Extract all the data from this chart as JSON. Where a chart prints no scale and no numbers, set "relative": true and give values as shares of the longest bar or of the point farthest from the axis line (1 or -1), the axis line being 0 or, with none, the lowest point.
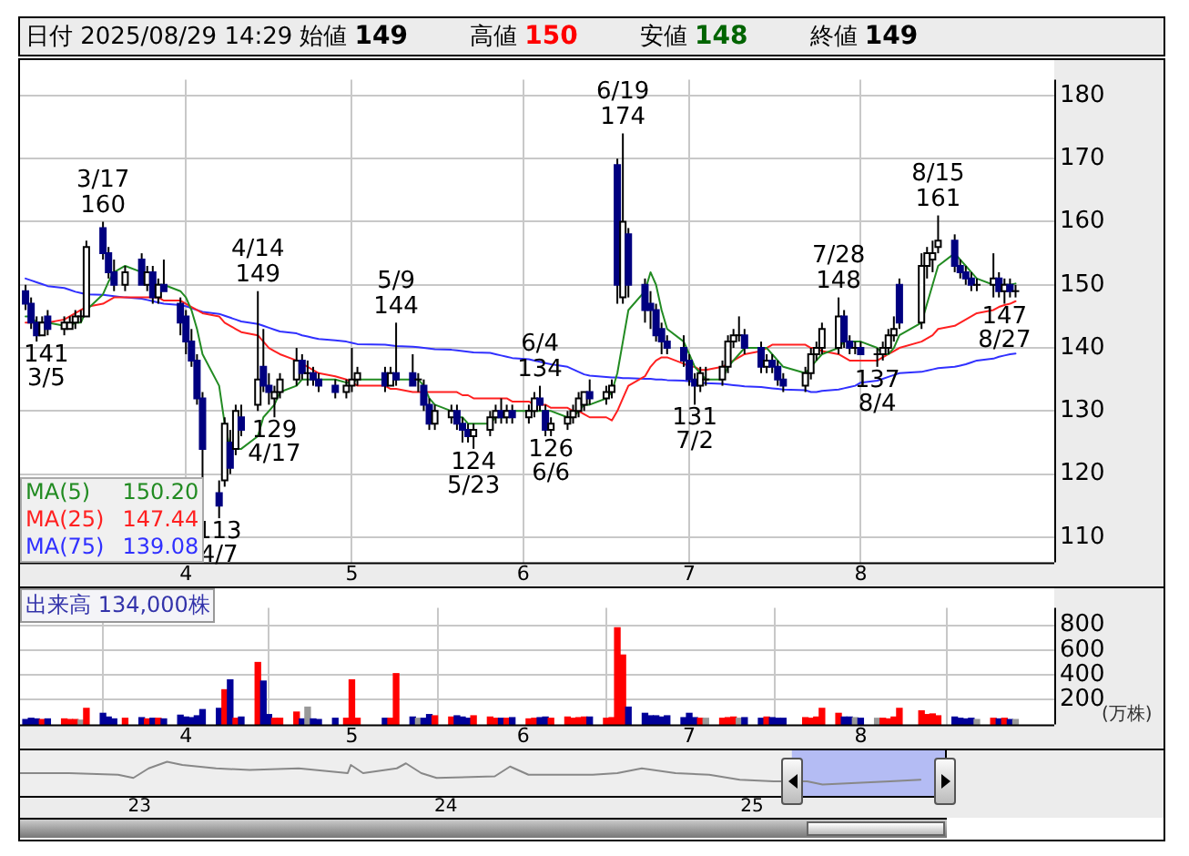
{
  "chart_data": [
    {
      "type": "candlestick",
      "title": "日付 2025/08/29 14:29",
      "annotations": [
        "始値 149",
        "高値 150",
        "安値 148",
        "終値 149",
        {
          "text": "141\n3/5",
          "x": "2025-03-05",
          "y": 141
        },
        {
          "text": "3/17\n160",
          "x": "2025-03-17",
          "y": 160
        },
        {
          "text": "113\n4/7",
          "x": "2025-04-07",
          "y": 113
        },
        {
          "text": "4/14\n149",
          "x": "2025-04-14",
          "y": 149
        },
        {
          "text": "129\n4/17",
          "x": "2025-04-17",
          "y": 129
        },
        {
          "text": "5/9\n144",
          "x": "2025-05-09",
          "y": 144
        },
        {
          "text": "124\n5/23",
          "x": "2025-05-23",
          "y": 124
        },
        {
          "text": "6/4\n134",
          "x": "2025-06-04",
          "y": 134
        },
        {
          "text": "126\n6/6",
          "x": "2025-06-06",
          "y": 126
        },
        {
          "text": "6/19\n174",
          "x": "2025-06-19",
          "y": 174
        },
        {
          "text": "131\n7/2",
          "x": "2025-07-02",
          "y": 131
        },
        {
          "text": "7/28\n148",
          "x": "2025-07-28",
          "y": 148
        },
        {
          "text": "137\n8/4",
          "x": "2025-08-04",
          "y": 137
        },
        {
          "text": "8/15\n161",
          "x": "2025-08-15",
          "y": 161
        },
        {
          "text": "147\n8/27",
          "x": "2025-08-27",
          "y": 147
        }
      ],
      "x": [
        "2025-03-03",
        "2025-03-04",
        "2025-03-05",
        "2025-03-06",
        "2025-03-07",
        "2025-03-10",
        "2025-03-11",
        "2025-03-12",
        "2025-03-13",
        "2025-03-14",
        "2025-03-17",
        "2025-03-18",
        "2025-03-19",
        "2025-03-21",
        "2025-03-24",
        "2025-03-25",
        "2025-03-26",
        "2025-03-27",
        "2025-03-28",
        "2025-03-31",
        "2025-04-01",
        "2025-04-02",
        "2025-04-03",
        "2025-04-04",
        "2025-04-07",
        "2025-04-08",
        "2025-04-09",
        "2025-04-10",
        "2025-04-11",
        "2025-04-14",
        "2025-04-15",
        "2025-04-16",
        "2025-04-17",
        "2025-04-18",
        "2025-04-21",
        "2025-04-22",
        "2025-04-23",
        "2025-04-24",
        "2025-04-25",
        "2025-04-28",
        "2025-04-30",
        "2025-05-01",
        "2025-05-02",
        "2025-05-07",
        "2025-05-08",
        "2025-05-09",
        "2025-05-12",
        "2025-05-13",
        "2025-05-14",
        "2025-05-15",
        "2025-05-16",
        "2025-05-19",
        "2025-05-20",
        "2025-05-21",
        "2025-05-22",
        "2025-05-23",
        "2025-05-26",
        "2025-05-27",
        "2025-05-28",
        "2025-05-29",
        "2025-05-30",
        "2025-06-02",
        "2025-06-03",
        "2025-06-04",
        "2025-06-05",
        "2025-06-06",
        "2025-06-09",
        "2025-06-10",
        "2025-06-11",
        "2025-06-12",
        "2025-06-13",
        "2025-06-16",
        "2025-06-17",
        "2025-06-18",
        "2025-06-19",
        "2025-06-20",
        "2025-06-23",
        "2025-06-24",
        "2025-06-25",
        "2025-06-26",
        "2025-06-27",
        "2025-06-30",
        "2025-07-01",
        "2025-07-02",
        "2025-07-03",
        "2025-07-04",
        "2025-07-07",
        "2025-07-08",
        "2025-07-09",
        "2025-07-10",
        "2025-07-11",
        "2025-07-14",
        "2025-07-15",
        "2025-07-16",
        "2025-07-17",
        "2025-07-18",
        "2025-07-22",
        "2025-07-23",
        "2025-07-24",
        "2025-07-25",
        "2025-07-28",
        "2025-07-29",
        "2025-07-30",
        "2025-07-31",
        "2025-08-01",
        "2025-08-04",
        "2025-08-05",
        "2025-08-06",
        "2025-08-07",
        "2025-08-08",
        "2025-08-12",
        "2025-08-13",
        "2025-08-14",
        "2025-08-15",
        "2025-08-18",
        "2025-08-19",
        "2025-08-20",
        "2025-08-21",
        "2025-08-22",
        "2025-08-25",
        "2025-08-26",
        "2025-08-27",
        "2025-08-28",
        "2025-08-29"
      ],
      "ohlc": [
        [
          149,
          150,
          146,
          147
        ],
        [
          147,
          148,
          143,
          144
        ],
        [
          144,
          145,
          141,
          142
        ],
        [
          142,
          145,
          142,
          144
        ],
        [
          145,
          146,
          142,
          143
        ],
        [
          143,
          145,
          142,
          144
        ],
        [
          143,
          145,
          143,
          144
        ],
        [
          144,
          146,
          143,
          145
        ],
        [
          145,
          146,
          144,
          145
        ],
        [
          145,
          157,
          145,
          156
        ],
        [
          159,
          160,
          154,
          155
        ],
        [
          155,
          156,
          151,
          152
        ],
        [
          152,
          154,
          149,
          150
        ],
        [
          150,
          153,
          149,
          152
        ],
        [
          154,
          155,
          150,
          150
        ],
        [
          150,
          153,
          149,
          152
        ],
        [
          152,
          153,
          147,
          148
        ],
        [
          148,
          151,
          147,
          150
        ],
        [
          150,
          154,
          149,
          149
        ],
        [
          147,
          148,
          142,
          144
        ],
        [
          145,
          146,
          139,
          141
        ],
        [
          141,
          143,
          137,
          138
        ],
        [
          138,
          139,
          131,
          132
        ],
        [
          132,
          133,
          119,
          124
        ],
        [
          117,
          119,
          113,
          115
        ],
        [
          119,
          129,
          118,
          128
        ],
        [
          125,
          127,
          120,
          121
        ],
        [
          124,
          131,
          123,
          130
        ],
        [
          129,
          131,
          126,
          127
        ],
        [
          131,
          149,
          130,
          135
        ],
        [
          137,
          143,
          133,
          134
        ],
        [
          134,
          136,
          131,
          133
        ],
        [
          132,
          134,
          129,
          133
        ],
        [
          133,
          136,
          132,
          135
        ],
        [
          135,
          140,
          134,
          138
        ],
        [
          138,
          139,
          135,
          136
        ],
        [
          136,
          138,
          134,
          136
        ],
        [
          136,
          137,
          134,
          135
        ],
        [
          135,
          136,
          133,
          134
        ],
        [
          134,
          135,
          132,
          133
        ],
        [
          133,
          135,
          132,
          134
        ],
        [
          134,
          140,
          133,
          135
        ],
        [
          135,
          137,
          134,
          136
        ],
        [
          136,
          137,
          133,
          134
        ],
        [
          134,
          137,
          134,
          136
        ],
        [
          136,
          144,
          134,
          135
        ],
        [
          136,
          139,
          134,
          134
        ],
        [
          135,
          136,
          133,
          135
        ],
        [
          134,
          135,
          130,
          131
        ],
        [
          131,
          132,
          127,
          128
        ],
        [
          128,
          131,
          127,
          130
        ],
        [
          129,
          131,
          128,
          130
        ],
        [
          130,
          131,
          127,
          128
        ],
        [
          128,
          129,
          125,
          127
        ],
        [
          127,
          128,
          125,
          126
        ],
        [
          126,
          128,
          124,
          127
        ],
        [
          127,
          130,
          126,
          129
        ],
        [
          129,
          131,
          128,
          130
        ],
        [
          130,
          132,
          128,
          129
        ],
        [
          129,
          131,
          128,
          130
        ],
        [
          130,
          131,
          128,
          129
        ],
        [
          129,
          131,
          128,
          130
        ],
        [
          130,
          133,
          129,
          132
        ],
        [
          132,
          134,
          130,
          131
        ],
        [
          130,
          131,
          126,
          127
        ],
        [
          127,
          129,
          126,
          128
        ],
        [
          128,
          130,
          127,
          129
        ],
        [
          129,
          131,
          128,
          130
        ],
        [
          130,
          133,
          129,
          132
        ],
        [
          131,
          133,
          130,
          133
        ],
        [
          133,
          135,
          131,
          132
        ],
        [
          132,
          134,
          131,
          133
        ],
        [
          133,
          135,
          132,
          134
        ],
        [
          169,
          170,
          147,
          150
        ],
        [
          148,
          174,
          147,
          160
        ],
        [
          158,
          159,
          148,
          150
        ],
        [
          150,
          151,
          144,
          146
        ],
        [
          147,
          149,
          143,
          146
        ],
        [
          146,
          147,
          141,
          142
        ],
        [
          143,
          144,
          139,
          141
        ],
        [
          141,
          142,
          139,
          140
        ],
        [
          140,
          142,
          137,
          138
        ],
        [
          138,
          139,
          134,
          135
        ],
        [
          135,
          136,
          131,
          134
        ],
        [
          134,
          137,
          133,
          136
        ],
        [
          135,
          137,
          134,
          135
        ],
        [
          135,
          138,
          134,
          137
        ],
        [
          137,
          142,
          136,
          141
        ],
        [
          141,
          143,
          140,
          142
        ],
        [
          142,
          145,
          141,
          142
        ],
        [
          142,
          143,
          139,
          140
        ],
        [
          140,
          141,
          136,
          137
        ],
        [
          137,
          139,
          136,
          138
        ],
        [
          138,
          139,
          136,
          137
        ],
        [
          137,
          138,
          134,
          135
        ],
        [
          135,
          136,
          133,
          134
        ],
        [
          134,
          137,
          133,
          136
        ],
        [
          136,
          140,
          135,
          139
        ],
        [
          139,
          141,
          138,
          140
        ],
        [
          140,
          144,
          139,
          143
        ],
        [
          140,
          148,
          139,
          145
        ],
        [
          145,
          146,
          140,
          141
        ],
        [
          141,
          142,
          139,
          140
        ],
        [
          140,
          141,
          139,
          140
        ],
        [
          140,
          141,
          139,
          139
        ],
        [
          139,
          140,
          137,
          139
        ],
        [
          139,
          141,
          138,
          140
        ],
        [
          140,
          143,
          139,
          142
        ],
        [
          142,
          145,
          141,
          143
        ],
        [
          150,
          151,
          143,
          144
        ],
        [
          144,
          155,
          143,
          153
        ],
        [
          153,
          156,
          151,
          155
        ],
        [
          154,
          157,
          152,
          155
        ],
        [
          156,
          161,
          155,
          157
        ],
        [
          157,
          158,
          152,
          153
        ],
        [
          153,
          154,
          151,
          152
        ],
        [
          152,
          153,
          150,
          151
        ],
        [
          151,
          152,
          149,
          150
        ],
        [
          150,
          151,
          149,
          150
        ],
        [
          150,
          155,
          148,
          151
        ],
        [
          151,
          152,
          148,
          149
        ],
        [
          149,
          151,
          147,
          150
        ],
        [
          150,
          151,
          148,
          149
        ],
        [
          149,
          150,
          148,
          149
        ]
      ],
      "colors": [
        "#000080",
        "#000080",
        "#000080",
        "#ffffff",
        "#000080",
        "#ffffff",
        "#ffffff",
        "#ffffff",
        "#000000",
        "#ffffff",
        "#000080",
        "#000080",
        "#000080",
        "#ffffff",
        "#000080",
        "#ffffff",
        "#000080",
        "#ffffff",
        "#000080",
        "#000080",
        "#000080",
        "#000080",
        "#000080",
        "#000080",
        "#000080",
        "#ffffff",
        "#000080",
        "#ffffff",
        "#000080",
        "#ffffff",
        "#000080",
        "#000080",
        "#ffffff",
        "#ffffff",
        "#ffffff",
        "#000080",
        "#000000",
        "#000080",
        "#000080",
        "#000080",
        "#ffffff",
        "#ffffff",
        "#ffffff",
        "#000080",
        "#ffffff",
        "#000080",
        "#000080",
        "#000000",
        "#000080",
        "#000080",
        "#ffffff",
        "#ffffff",
        "#000080",
        "#000080",
        "#000080",
        "#ffffff",
        "#ffffff",
        "#ffffff",
        "#000080",
        "#ffffff",
        "#000080",
        "#ffffff",
        "#ffffff",
        "#000080",
        "#000080",
        "#ffffff",
        "#ffffff",
        "#ffffff",
        "#ffffff",
        "#ffffff",
        "#000080",
        "#ffffff",
        "#ffffff",
        "#000080",
        "#ffffff",
        "#000080",
        "#000080",
        "#000080",
        "#000080",
        "#000080",
        "#000080",
        "#000080",
        "#000080",
        "#000080",
        "#ffffff",
        "#000000",
        "#ffffff",
        "#ffffff",
        "#ffffff",
        "#000000",
        "#000080",
        "#000080",
        "#ffffff",
        "#000080",
        "#000080",
        "#000080",
        "#ffffff",
        "#ffffff",
        "#ffffff",
        "#ffffff",
        "#ffffff",
        "#000080",
        "#000080",
        "#000000",
        "#000080",
        "#000000",
        "#ffffff",
        "#ffffff",
        "#ffffff",
        "#000080",
        "#ffffff",
        "#ffffff",
        "#ffffff",
        "#ffffff",
        "#000080",
        "#000080",
        "#000080",
        "#000080",
        "#000000",
        "#ffffff",
        "#000080",
        "#ffffff",
        "#000080",
        "#000000"
      ],
      "series": [
        {
          "type": "line",
          "name": "MA(5) 150.20",
          "color": "#228b22",
          "values": [
            145,
            145,
            144,
            144,
            144,
            143.5,
            143.5,
            144,
            144,
            146,
            148.5,
            150.5,
            152,
            153,
            152,
            152,
            150,
            150,
            150,
            149,
            148,
            146,
            143,
            139,
            134,
            128,
            124,
            124,
            124,
            126,
            129,
            130,
            131,
            133,
            134,
            135,
            135,
            135,
            135,
            135,
            134.5,
            134.5,
            135,
            135,
            135,
            135,
            135,
            135,
            134,
            132,
            131,
            130,
            129,
            129,
            128,
            128,
            128,
            129,
            129,
            129,
            130,
            130,
            130,
            130,
            130,
            130,
            129,
            129,
            130,
            131,
            131,
            132,
            133,
            136,
            141,
            146,
            149,
            152,
            150,
            146,
            143,
            141,
            139,
            137,
            136,
            135,
            135,
            137,
            138,
            139,
            140,
            140,
            140,
            139,
            138,
            137,
            136,
            137,
            138,
            139,
            140,
            141,
            141,
            141,
            141,
            140,
            139,
            139,
            140,
            142,
            144,
            147,
            150,
            153,
            155,
            154,
            153,
            152,
            151,
            150,
            150,
            150,
            150,
            150.2
          ]
        },
        {
          "type": "line",
          "name": "MA(25) 147.44",
          "color": "#ff2020",
          "values": [
            144,
            144,
            144,
            144,
            144,
            144.5,
            145,
            145.5,
            146,
            146.5,
            147,
            147.5,
            148,
            148,
            148,
            148,
            148,
            148,
            147.5,
            147.5,
            147,
            146.5,
            146,
            145.5,
            145,
            144,
            143.5,
            143,
            142.5,
            142,
            141,
            140,
            139.5,
            139,
            138,
            137.5,
            137,
            136.5,
            136,
            135.5,
            135,
            134.5,
            134,
            134,
            133.5,
            133.5,
            133,
            133,
            133,
            133,
            133,
            133,
            133,
            132.5,
            132.5,
            132,
            132,
            132,
            132,
            132,
            131.5,
            131.5,
            131,
            131,
            131,
            130.5,
            130.5,
            130,
            130,
            129.5,
            129,
            129,
            128.5,
            130,
            132,
            134,
            135.5,
            137,
            138,
            138.5,
            138.5,
            137.5,
            137,
            137,
            136.5,
            136.5,
            137,
            137.5,
            138,
            138.5,
            139,
            139.5,
            140,
            140.5,
            140.5,
            140.5,
            140.5,
            140,
            140,
            139.5,
            139,
            138.5,
            138,
            138,
            138,
            138,
            138.5,
            139,
            139.5,
            140,
            141,
            141.5,
            142,
            143,
            143.5,
            144,
            144.5,
            145,
            145.5,
            146,
            146.5,
            146.8,
            147,
            147.4
          ]
        },
        {
          "type": "line",
          "name": "MA(75) 139.08",
          "color": "#3030ff",
          "values": [
            151,
            150.7,
            150.4,
            150.1,
            149.8,
            149.5,
            149.2,
            148.9,
            148.7,
            148.5,
            148.4,
            148.3,
            148.2,
            148,
            147.8,
            147.6,
            147.4,
            147.2,
            147,
            146.8,
            146.6,
            146.3,
            146,
            145.7,
            145.4,
            145.1,
            144.8,
            144.5,
            144.2,
            143.8,
            143.5,
            143.2,
            142.9,
            142.6,
            142.3,
            142,
            141.8,
            141.6,
            141.4,
            141.2,
            141,
            140.8,
            140.6,
            140.5,
            140.4,
            140.3,
            140.2,
            140.1,
            140,
            139.9,
            139.8,
            139.7,
            139.6,
            139.5,
            139.4,
            139.3,
            139.2,
            139,
            138.8,
            138.6,
            138.4,
            138.2,
            138,
            137.8,
            137.6,
            137.4,
            137,
            136.6,
            136.2,
            135.8,
            135.6,
            135.4,
            135.3,
            135.3,
            135.2,
            135.2,
            135.1,
            135.1,
            135,
            135,
            134.9,
            134.8,
            134.7,
            134.6,
            134.5,
            134.4,
            134.3,
            134.2,
            134.1,
            134,
            133.9,
            133.8,
            133.7,
            133.6,
            133.5,
            133.4,
            133.3,
            133,
            133,
            133.2,
            133.4,
            133.6,
            133.8,
            134,
            134.5,
            134.8,
            135.1,
            135.4,
            135.7,
            136,
            136.2,
            136.4,
            136.6,
            136.8,
            137,
            137.2,
            137.4,
            137.7,
            138,
            138.3,
            138.6,
            138.8,
            139,
            139.1
          ]
        }
      ],
      "xlim": [
        "2025-03-02",
        "2025-09-05"
      ],
      "xticks": [
        {
          "value": "2025-04-01",
          "label": "4"
        },
        {
          "value": "2025-05-01",
          "label": "5"
        },
        {
          "value": "2025-06-01",
          "label": "6"
        },
        {
          "value": "2025-07-01",
          "label": "7"
        },
        {
          "value": "2025-08-01",
          "label": "8"
        }
      ],
      "ylim": [
        106,
        182.5
      ],
      "yticks": [
        110,
        120,
        130,
        140,
        150,
        160,
        170,
        180
      ],
      "grid": true,
      "legend": "bottom left",
      "marker": "none"
    },
    {
      "type": "bar",
      "title": "出来高 134,000株",
      "ylabel": "(万株)",
      "x": [
        "2025-03-03",
        "2025-03-04",
        "2025-03-05",
        "2025-03-06",
        "2025-03-07",
        "2025-03-10",
        "2025-03-11",
        "2025-03-12",
        "2025-03-13",
        "2025-03-14",
        "2025-03-17",
        "2025-03-18",
        "2025-03-19",
        "2025-03-21",
        "2025-03-24",
        "2025-03-25",
        "2025-03-26",
        "2025-03-27",
        "2025-03-28",
        "2025-03-31",
        "2025-04-01",
        "2025-04-02",
        "2025-04-03",
        "2025-04-04",
        "2025-04-07",
        "2025-04-08",
        "2025-04-09",
        "2025-04-10",
        "2025-04-11",
        "2025-04-14",
        "2025-04-15",
        "2025-04-16",
        "2025-04-17",
        "2025-04-18",
        "2025-04-21",
        "2025-04-22",
        "2025-04-23",
        "2025-04-24",
        "2025-04-25",
        "2025-04-28",
        "2025-04-30",
        "2025-05-01",
        "2025-05-02",
        "2025-05-07",
        "2025-05-08",
        "2025-05-09",
        "2025-05-12",
        "2025-05-13",
        "2025-05-14",
        "2025-05-15",
        "2025-05-16",
        "2025-05-19",
        "2025-05-20",
        "2025-05-21",
        "2025-05-22",
        "2025-05-23",
        "2025-05-26",
        "2025-05-27",
        "2025-05-28",
        "2025-05-29",
        "2025-05-30",
        "2025-06-02",
        "2025-06-03",
        "2025-06-04",
        "2025-06-05",
        "2025-06-06",
        "2025-06-09",
        "2025-06-10",
        "2025-06-11",
        "2025-06-12",
        "2025-06-13",
        "2025-06-16",
        "2025-06-17",
        "2025-06-18",
        "2025-06-19",
        "2025-06-20",
        "2025-06-23",
        "2025-06-24",
        "2025-06-25",
        "2025-06-26",
        "2025-06-27",
        "2025-06-30",
        "2025-07-01",
        "2025-07-02",
        "2025-07-03",
        "2025-07-04",
        "2025-07-07",
        "2025-07-08",
        "2025-07-09",
        "2025-07-10",
        "2025-07-11",
        "2025-07-14",
        "2025-07-15",
        "2025-07-16",
        "2025-07-17",
        "2025-07-18",
        "2025-07-22",
        "2025-07-23",
        "2025-07-24",
        "2025-07-25",
        "2025-07-28",
        "2025-07-29",
        "2025-07-30",
        "2025-07-31",
        "2025-08-01",
        "2025-08-04",
        "2025-08-05",
        "2025-08-06",
        "2025-08-07",
        "2025-08-08",
        "2025-08-12",
        "2025-08-13",
        "2025-08-14",
        "2025-08-15",
        "2025-08-18",
        "2025-08-19",
        "2025-08-20",
        "2025-08-21",
        "2025-08-22",
        "2025-08-25",
        "2025-08-26",
        "2025-08-27",
        "2025-08-28",
        "2025-08-29"
      ],
      "values": [
        40,
        50,
        45,
        40,
        45,
        45,
        40,
        40,
        35,
        130,
        90,
        60,
        45,
        50,
        55,
        45,
        50,
        50,
        45,
        75,
        60,
        55,
        70,
        120,
        130,
        280,
        360,
        50,
        60,
        500,
        350,
        80,
        50,
        50,
        100,
        45,
        140,
        45,
        40,
        50,
        50,
        360,
        50,
        50,
        50,
        410,
        60,
        50,
        50,
        80,
        70,
        60,
        70,
        60,
        50,
        70,
        60,
        50,
        50,
        50,
        55,
        45,
        50,
        55,
        60,
        50,
        60,
        50,
        55,
        60,
        60,
        50,
        55,
        780,
        560,
        140,
        90,
        70,
        70,
        60,
        70,
        55,
        90,
        55,
        50,
        50,
        50,
        55,
        60,
        50,
        55,
        50,
        60,
        55,
        50,
        50,
        55,
        50,
        60,
        130,
        90,
        60,
        60,
        55,
        50,
        50,
        50,
        45,
        60,
        130,
        110,
        80,
        85,
        70,
        60,
        50,
        45,
        50,
        40,
        50,
        45,
        50,
        40,
        40
      ],
      "colors": [
        "#000099",
        "#000099",
        "#000099",
        "#ff0000",
        "#000099",
        "#ff0000",
        "#ff0000",
        "#ff0000",
        "#999999",
        "#ff0000",
        "#000099",
        "#000099",
        "#000099",
        "#ff0000",
        "#000099",
        "#ff0000",
        "#000099",
        "#ff0000",
        "#000099",
        "#000099",
        "#000099",
        "#000099",
        "#000099",
        "#000099",
        "#000099",
        "#ff0000",
        "#000099",
        "#ff0000",
        "#000099",
        "#ff0000",
        "#000099",
        "#000099",
        "#ff0000",
        "#ff0000",
        "#ff0000",
        "#000099",
        "#999999",
        "#000099",
        "#000099",
        "#000099",
        "#ff0000",
        "#ff0000",
        "#ff0000",
        "#000099",
        "#ff0000",
        "#ff0000",
        "#000099",
        "#999999",
        "#000099",
        "#000099",
        "#ff0000",
        "#ff0000",
        "#000099",
        "#000099",
        "#000099",
        "#ff0000",
        "#ff0000",
        "#ff0000",
        "#000099",
        "#ff0000",
        "#000099",
        "#ff0000",
        "#ff0000",
        "#000099",
        "#000099",
        "#ff0000",
        "#ff0000",
        "#ff0000",
        "#ff0000",
        "#ff0000",
        "#000099",
        "#ff0000",
        "#ff0000",
        "#ff0000",
        "#ff0000",
        "#000099",
        "#000099",
        "#000099",
        "#000099",
        "#000099",
        "#000099",
        "#000099",
        "#000099",
        "#000099",
        "#ff0000",
        "#999999",
        "#ff0000",
        "#ff0000",
        "#ff0000",
        "#999999",
        "#000099",
        "#000099",
        "#ff0000",
        "#000099",
        "#000099",
        "#000099",
        "#ff0000",
        "#ff0000",
        "#ff0000",
        "#ff0000",
        "#ff0000",
        "#000099",
        "#000099",
        "#999999",
        "#000099",
        "#999999",
        "#ff0000",
        "#ff0000",
        "#ff0000",
        "#ff0000",
        "#ff0000",
        "#ff0000",
        "#ff0000",
        "#ff0000",
        "#000099",
        "#000099",
        "#000099",
        "#000099",
        "#999999",
        "#ff0000",
        "#000099",
        "#ff0000",
        "#000099",
        "#999999"
      ],
      "xlim": [
        "2025-03-02",
        "2025-09-05"
      ],
      "xticks": [
        {
          "value": "2025-04-01",
          "label": "4"
        },
        {
          "value": "2025-05-01",
          "label": "5"
        },
        {
          "value": "2025-06-01",
          "label": "6"
        },
        {
          "value": "2025-07-01",
          "label": "7"
        },
        {
          "value": "2025-08-01",
          "label": "8"
        }
      ],
      "ylim": [
        0,
        940
      ],
      "yticks": [
        200,
        400,
        600,
        800
      ],
      "grid": true
    },
    {
      "type": "line",
      "relative": true,
      "color": "#888888",
      "tick_labels": "x",
      "x": [
        2022.61,
        2022.77,
        2022.93,
        2022.98,
        2023.03,
        2023.09,
        2023.14,
        2023.25,
        2023.36,
        2023.52,
        2023.68,
        2023.69,
        2023.73,
        2023.84,
        2023.87,
        2023.92,
        2023.97,
        2024.16,
        2024.21,
        2024.27,
        2024.48,
        2024.56,
        2024.64,
        2024.75,
        2024.86,
        2024.96,
        2025.07,
        2025.18,
        2025.23,
        2025.34,
        2025.45,
        2025.55
      ],
      "values": [
        0.5,
        0.5,
        0.43,
        0.29,
        0.71,
        1,
        0.86,
        0.71,
        0.64,
        0.71,
        0.5,
        0.86,
        0.5,
        0.71,
        0.93,
        0.5,
        0.29,
        0.36,
        0.79,
        0.43,
        0.43,
        0.5,
        0.71,
        0.5,
        0.43,
        0.21,
        0.14,
        0.14,
        0,
        0.07,
        0.14,
        0.21
      ],
      "xlim": [
        2022.61,
        2025.63
      ],
      "xticks": [
        {
          "value": 2023,
          "label": "23"
        },
        {
          "value": 2024,
          "label": "24"
        },
        {
          "value": 2025,
          "label": "25"
        }
      ],
      "bands": [
        {
          "axis": "x",
          "from": 2025.13,
          "to": 2025.63,
          "color": "#b4bcf4"
        }
      ]
    }
  ]
}
